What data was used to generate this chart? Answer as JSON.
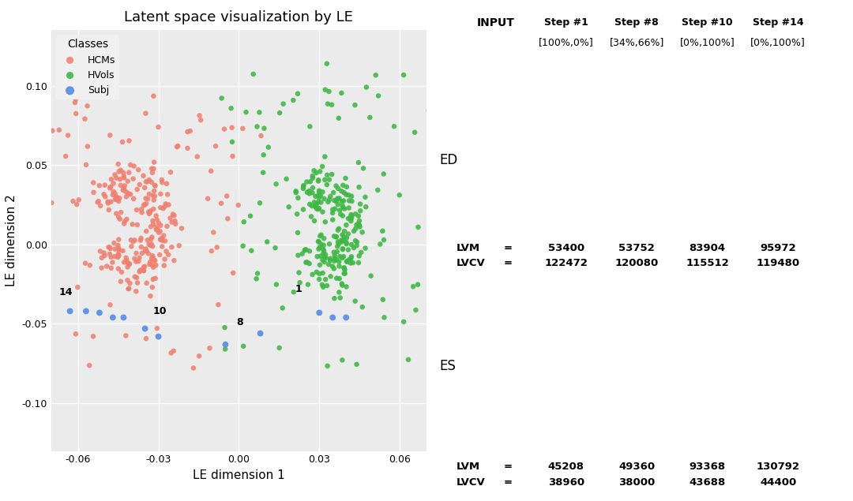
{
  "title": "Latent space visualization by LE",
  "xlabel": "LE dimension 1",
  "ylabel": "LE dimension 2",
  "xlim": [
    -0.07,
    0.07
  ],
  "ylim": [
    -0.13,
    0.135
  ],
  "xticks": [
    -0.06,
    -0.03,
    0.0,
    0.03,
    0.06
  ],
  "yticks": [
    -0.1,
    -0.05,
    0.0,
    0.05,
    0.1
  ],
  "legend_title": "Classes",
  "legend_labels": [
    "HCMs",
    "HVols",
    "Subj"
  ],
  "hcm_color": "#F08070",
  "hvol_color": "#3CB843",
  "subj_color": "#5B8FE8",
  "point_size": 22,
  "bg_color": "#EBEBEB",
  "grid_color": "white",
  "ed_label": "ED",
  "es_label": "ES",
  "col_headers_line1": [
    "INPUT",
    "Step #1",
    "Step #8",
    "Step #10",
    "Step #14"
  ],
  "col_headers_line2": [
    "",
    "[100%,0%]",
    "[34%,66%]",
    "[0%,100%]",
    "[0%,100%]"
  ],
  "ed_lvm": [
    "53400",
    "53752",
    "83904",
    "95972"
  ],
  "ed_lvcv": [
    "122472",
    "120080",
    "115512",
    "119480"
  ],
  "es_lvm": [
    "45208",
    "49360",
    "93368",
    "130792"
  ],
  "es_lvcv": [
    "38960",
    "38000",
    "43688",
    "44400"
  ],
  "subj_points": [
    [
      -0.063,
      -0.042
    ],
    [
      -0.057,
      -0.042
    ],
    [
      -0.052,
      -0.043
    ],
    [
      -0.047,
      -0.046
    ],
    [
      -0.043,
      -0.046
    ],
    [
      -0.035,
      -0.053
    ],
    [
      -0.03,
      -0.058
    ],
    [
      -0.005,
      -0.063
    ],
    [
      0.008,
      -0.056
    ],
    [
      0.03,
      -0.043
    ],
    [
      0.035,
      -0.046
    ],
    [
      0.04,
      -0.046
    ]
  ],
  "label_14": [
    -0.066,
    -0.038
  ],
  "label_10": [
    -0.033,
    -0.049
  ],
  "label_8": [
    -0.002,
    -0.056
  ],
  "label_1": [
    0.026,
    -0.037
  ]
}
